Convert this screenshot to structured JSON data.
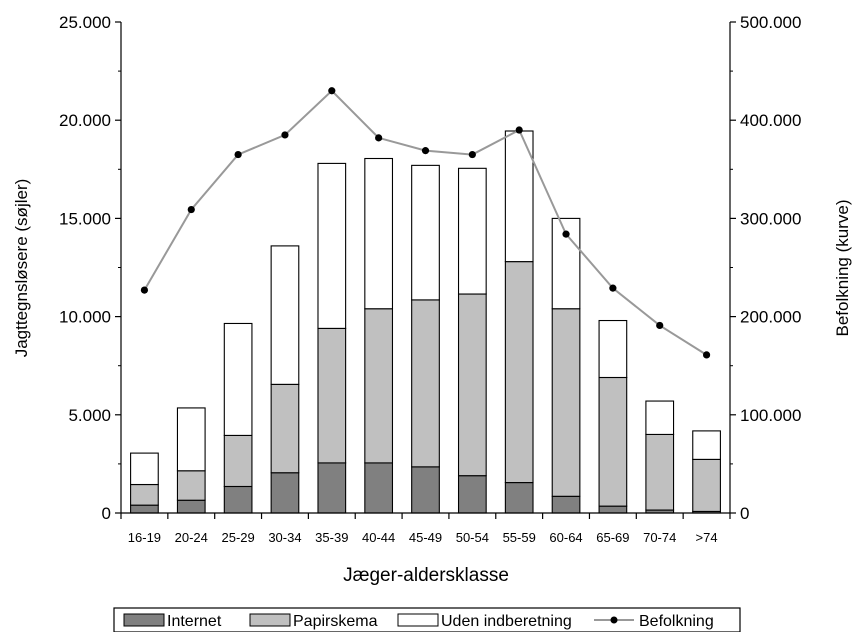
{
  "chart_data": {
    "type": "bar",
    "stacked": true,
    "title": "",
    "xlabel": "Jæger-aldersklasse",
    "ylabel": "Jagttegnsløsere (søjler)",
    "y2label": "Befolkning (kurve)",
    "ylim": [
      0,
      25000
    ],
    "y2lim": [
      0,
      500000
    ],
    "yticks": [
      "0",
      "5.000",
      "10.000",
      "15.000",
      "20.000",
      "25.000"
    ],
    "y2ticks": [
      "0",
      "100.000",
      "200.000",
      "300.000",
      "400.000",
      "500.000"
    ],
    "categories": [
      "16-19",
      "20-24",
      "25-29",
      "30-34",
      "35-39",
      "40-44",
      "45-49",
      "50-54",
      "55-59",
      "60-64",
      "65-69",
      "70-74",
      ">74"
    ],
    "series": [
      {
        "name": "Internet",
        "kind": "bar",
        "axis": "left",
        "color": "#808080",
        "values": [
          400,
          650,
          1350,
          2050,
          2550,
          2550,
          2350,
          1900,
          1550,
          850,
          350,
          150,
          80
        ]
      },
      {
        "name": "Papirskema",
        "kind": "bar",
        "axis": "left",
        "color": "#c0c0c0",
        "values": [
          1050,
          1500,
          2600,
          4500,
          6850,
          7850,
          8500,
          9250,
          11250,
          9550,
          6550,
          3850,
          2650
        ]
      },
      {
        "name": "Uden indberetning",
        "kind": "bar",
        "axis": "left",
        "color": "#ffffff",
        "values": [
          1600,
          3200,
          5700,
          7050,
          8400,
          7650,
          6850,
          6400,
          6650,
          4600,
          2900,
          1700,
          1450
        ]
      },
      {
        "name": "Befolkning",
        "kind": "line",
        "axis": "right",
        "color": "#999999",
        "values": [
          227000,
          309000,
          365000,
          385000,
          430000,
          382000,
          369000,
          365000,
          390000,
          284000,
          229000,
          191000,
          161000
        ]
      }
    ],
    "legend_position": "bottom",
    "grid": false
  }
}
